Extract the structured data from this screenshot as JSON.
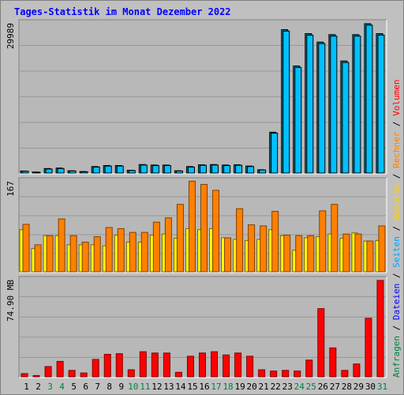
{
  "title": "Tages-Statistik im Monat Dezember 2022",
  "colors": {
    "background": "#c0c0c0",
    "panel": "#b8b8b8",
    "grid": "#999999",
    "anfragen": "#00c0ff",
    "dateien": "#00c0ff",
    "seiten": "#00c0ff",
    "besuche": "#ffff00",
    "rechner": "#ff8000",
    "volumen": "#ff0000",
    "weekday_label": "#000000",
    "weekend_label": "#008040"
  },
  "legend_right": {
    "top": [
      {
        "text": "Anfragen",
        "color": "#008040"
      },
      {
        "text": " / ",
        "color": "#000000"
      },
      {
        "text": "Dateien",
        "color": "#0000ff"
      },
      {
        "text": " / ",
        "color": "#000000"
      },
      {
        "text": "Seiten",
        "color": "#00a0ff"
      },
      {
        "text": " / ",
        "color": "#000000"
      },
      {
        "text": "Besuche",
        "color": "#ffd000"
      },
      {
        "text": " / ",
        "color": "#000000"
      },
      {
        "text": "Rechner",
        "color": "#ff8000"
      },
      {
        "text": " / ",
        "color": "#000000"
      },
      {
        "text": "Volumen",
        "color": "#ff0000"
      }
    ]
  },
  "chart_data": {
    "type": "bar",
    "categories": [
      "1",
      "2",
      "3",
      "4",
      "5",
      "6",
      "7",
      "8",
      "9",
      "10",
      "11",
      "12",
      "13",
      "14",
      "15",
      "16",
      "17",
      "18",
      "19",
      "20",
      "21",
      "22",
      "23",
      "24",
      "25",
      "26",
      "27",
      "28",
      "29",
      "30",
      "31"
    ],
    "weekend_days": [
      3,
      4,
      10,
      11,
      17,
      18,
      24,
      25,
      31
    ],
    "panels": [
      {
        "name": "anfragen-dateien",
        "axis_label": "29989",
        "ymax": 29989,
        "series": [
          {
            "name": "Anfragen",
            "values": [
              400,
              200,
              900,
              1000,
              450,
              300,
              1300,
              1500,
              1500,
              550,
              1700,
              1600,
              1600,
              450,
              1300,
              1650,
              1700,
              1600,
              1650,
              1400,
              650,
              8200,
              28800,
              21500,
              28000,
              26300,
              27800,
              22500,
              27800,
              30000,
              28000
            ]
          },
          {
            "name": "Dateien",
            "values": [
              350,
              150,
              800,
              900,
              400,
              250,
              1200,
              1400,
              1400,
              500,
              1600,
              1500,
              1500,
              400,
              1200,
              1550,
              1600,
              1500,
              1550,
              1300,
              600,
              8000,
              28500,
              21200,
              27700,
              26000,
              27500,
              22200,
              27500,
              29700,
              27700
            ]
          }
        ]
      },
      {
        "name": "seiten-besuche-rechner",
        "axis_label": "167",
        "ymax": 167,
        "series": [
          {
            "name": "Seiten",
            "values": [
              78,
              43,
              67,
              67,
              50,
              50,
              50,
              48,
              68,
              55,
              55,
              68,
              70,
              62,
              80,
              78,
              80,
              63,
              60,
              58,
              60,
              78,
              67,
              40,
              63,
              65,
              70,
              62,
              72,
              57,
              58
            ]
          },
          {
            "name": "Besuche",
            "values": [
              78,
              43,
              67,
              67,
              50,
              50,
              50,
              48,
              68,
              55,
              55,
              68,
              70,
              62,
              80,
              78,
              80,
              63,
              60,
              58,
              60,
              78,
              67,
              40,
              63,
              65,
              70,
              62,
              72,
              57,
              58
            ]
          },
          {
            "name": "Rechner",
            "values": [
              88,
              50,
              67,
              98,
              67,
              55,
              65,
              82,
              80,
              73,
              73,
              92,
              100,
              125,
              168,
              162,
              151,
              63,
              117,
              87,
              85,
              112,
              68,
              67,
              67,
              113,
              125,
              70,
              70,
              57,
              85
            ]
          }
        ]
      },
      {
        "name": "volumen",
        "axis_label": "74.90 MB",
        "ymax": 74.9,
        "series": [
          {
            "name": "Volumen",
            "values": [
              2.5,
              1.0,
              8.0,
              12.0,
              5.0,
              3.0,
              13.5,
              17.5,
              18.0,
              5.5,
              19.5,
              18.5,
              18.5,
              3.5,
              16.0,
              18.5,
              19.5,
              17.0,
              18.5,
              16.0,
              5.5,
              4.5,
              5.0,
              4.5,
              13.0,
              53.0,
              22.5,
              5.0,
              10.0,
              45.5,
              74.9
            ]
          }
        ]
      }
    ]
  }
}
